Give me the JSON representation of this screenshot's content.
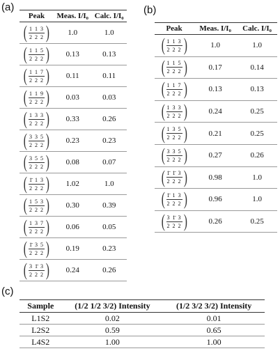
{
  "panel_a": {
    "label": "(a)",
    "headers": [
      "Peak",
      "Meas. I/I₀",
      "Calc. I/I₀"
    ],
    "rows": [
      {
        "num": "1 1 3",
        "den": "2 2 2",
        "meas": "1.0",
        "calc": "1.0"
      },
      {
        "num": "1 1 5",
        "den": "2 2 2",
        "meas": "0.13",
        "calc": "0.13"
      },
      {
        "num": "1 1 7",
        "den": "2 2 2",
        "meas": "0.11",
        "calc": "0.11"
      },
      {
        "num": "1 1 9",
        "den": "2 2 2",
        "meas": "0.03",
        "calc": "0.03"
      },
      {
        "num": "1 3 3",
        "den": "2 2 2",
        "meas": "0.33",
        "calc": "0.26"
      },
      {
        "num": "3 3 5",
        "den": "2 2 2",
        "meas": "0.23",
        "calc": "0.23"
      },
      {
        "num": "3 5 5",
        "den": "2 2 2",
        "meas": "0.08",
        "calc": "0.07"
      },
      {
        "num": "1̄ 1 3",
        "den": "2 2 2",
        "meas": "1.02",
        "calc": "1.0"
      },
      {
        "num": "1 5 3",
        "den": "2 2 2",
        "meas": "0.30",
        "calc": "0.39"
      },
      {
        "num": "1 3 7",
        "den": "2 2 2",
        "meas": "0.06",
        "calc": "0.05"
      },
      {
        "num": "1̄ 3 5",
        "den": "2 2 2",
        "meas": "0.19",
        "calc": "0.23"
      },
      {
        "num": "3 1̄ 3",
        "den": "2 2 2",
        "meas": "0.24",
        "calc": "0.26"
      }
    ]
  },
  "panel_b": {
    "label": "(b)",
    "headers": [
      "Peak",
      "Meas. I/I₀",
      "Calc. I/I₀"
    ],
    "rows": [
      {
        "num": "1 1 3",
        "den": "2 2 2",
        "meas": "1.0",
        "calc": "1.0"
      },
      {
        "num": "1 1 5",
        "den": "2 2 2",
        "meas": "0.17",
        "calc": "0.14"
      },
      {
        "num": "1 1 7",
        "den": "2 2 2",
        "meas": "0.13",
        "calc": "0.13"
      },
      {
        "num": "1 3 3",
        "den": "2 2 2",
        "meas": "0.24",
        "calc": "0.25"
      },
      {
        "num": "1 3 5",
        "den": "2 2 2",
        "meas": "0.21",
        "calc": "0.25"
      },
      {
        "num": "3 3 5",
        "den": "2 2 2",
        "meas": "0.27",
        "calc": "0.26"
      },
      {
        "num": "1̄ 1̄ 3",
        "den": "2 2 2",
        "meas": "0.98",
        "calc": "1.0"
      },
      {
        "num": "1̄ 1 3",
        "den": "2 2 2",
        "meas": "0.96",
        "calc": "1.0"
      },
      {
        "num": "3 1̄ 3",
        "den": "2 2 2",
        "meas": "0.26",
        "calc": "0.25"
      }
    ]
  },
  "panel_c": {
    "label": "(c)",
    "headers": [
      "Sample",
      "(1/2 1/2 3/2) Intensity",
      "(1/2 3/2 3/2) Intensity"
    ],
    "rows": [
      [
        "L1S2",
        "0.02",
        "0.01"
      ],
      [
        "L2S2",
        "0.59",
        "0.65"
      ],
      [
        "L4S2",
        "1.00",
        "1.00"
      ]
    ]
  }
}
